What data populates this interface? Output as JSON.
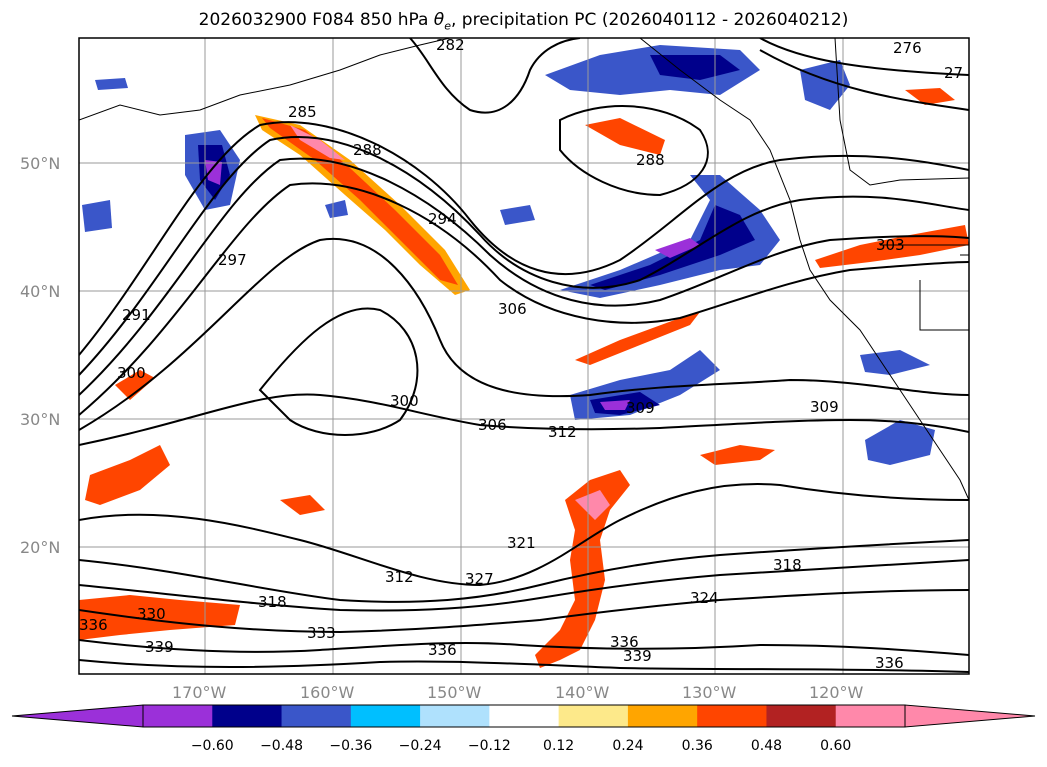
{
  "title_parts": {
    "prefix": "2026032900 F084 850 hPa ",
    "theta": "θ",
    "theta_sub": "e",
    "suffix": ", precipitation PC (2026040112 - 2026040212)"
  },
  "lat_labels": [
    "50°N",
    "40°N",
    "30°N",
    "20°N"
  ],
  "lon_labels": [
    "170°W",
    "160°W",
    "150°W",
    "140°W",
    "130°W",
    "120°W"
  ],
  "colorbar": {
    "ticks": [
      "−0.60",
      "−0.48",
      "−0.36",
      "−0.24",
      "−0.12",
      "0.12",
      "0.24",
      "0.36",
      "0.48",
      "0.60"
    ],
    "colors": [
      "#9b30d9",
      "#00008b",
      "#3a56c9",
      "#00bfff",
      "#afe1fd",
      "#ffffff",
      "#fde98a",
      "#ffa500",
      "#ff4500",
      "#b22222",
      "#ff88aa"
    ],
    "under_color": "#9b30d9",
    "over_color": "#ff88aa"
  },
  "contour_labels": [
    "276",
    "27",
    "282",
    "285",
    "288",
    "288",
    "294",
    "297",
    "291",
    "300",
    "303",
    "306",
    "300",
    "306",
    "309",
    "312",
    "309",
    "321",
    "312",
    "327",
    "318",
    "318",
    "324",
    "330",
    "336",
    "333",
    "339",
    "336",
    "336",
    "339",
    "336"
  ]
}
